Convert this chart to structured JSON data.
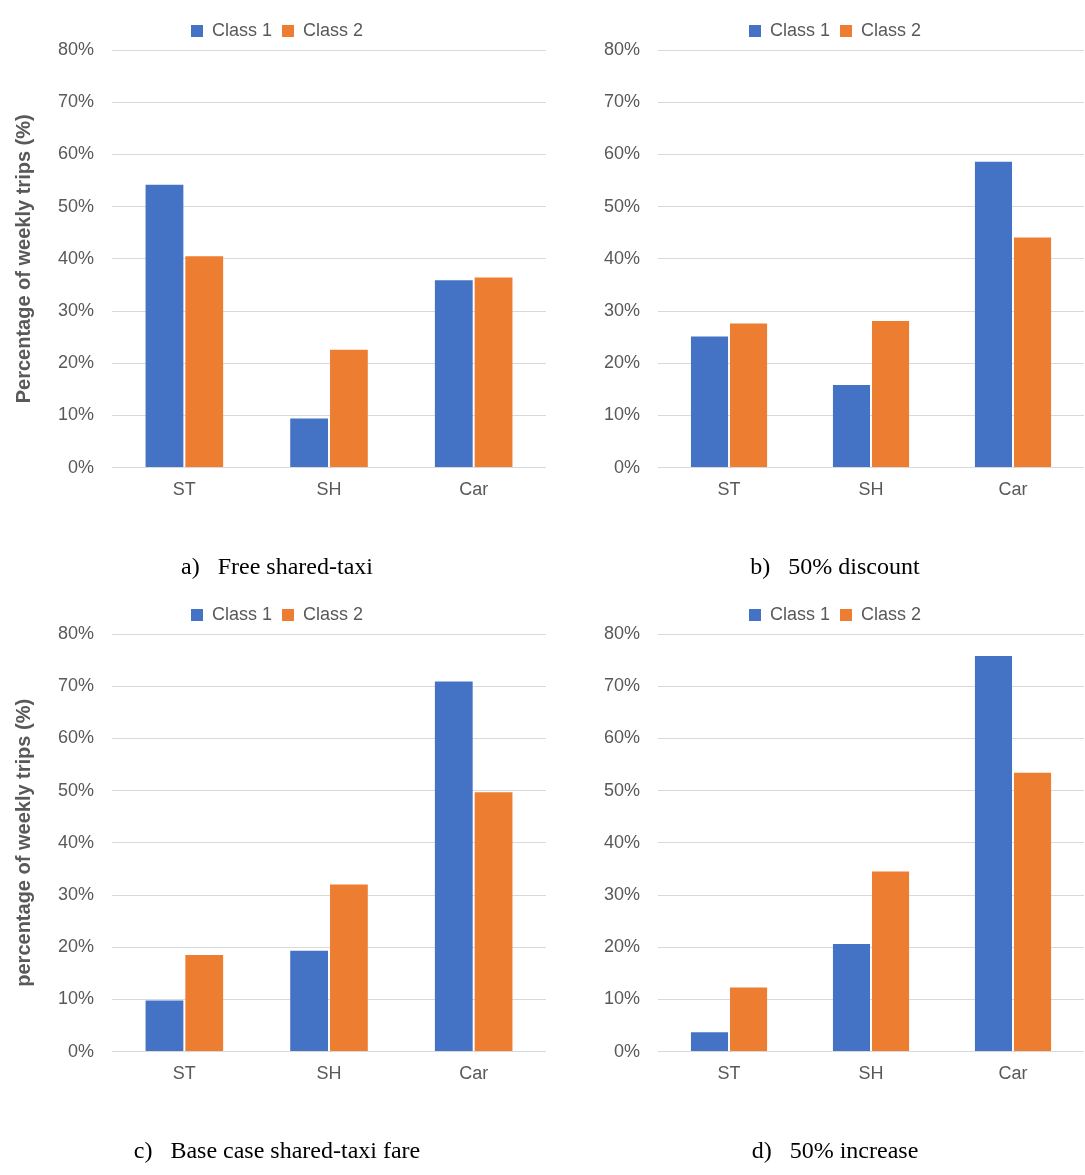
{
  "chart_data": [
    {
      "type": "bar",
      "title": "a)   Free shared-taxi",
      "ylabel": "Percentage of weekly trips (%)",
      "categories": [
        "ST",
        "SH",
        "Car"
      ],
      "series": [
        {
          "name": "Class 1",
          "color": "#4472c4",
          "values": [
            54.2,
            9.4,
            35.9
          ]
        },
        {
          "name": "Class 2",
          "color": "#ed7d31",
          "values": [
            40.5,
            22.6,
            36.4
          ]
        }
      ],
      "ylim": [
        0,
        80
      ],
      "yticks": [
        {
          "value": 0,
          "label": "0%"
        },
        {
          "value": 10,
          "label": "10%"
        },
        {
          "value": 20,
          "label": "20%"
        },
        {
          "value": 30,
          "label": "30%"
        },
        {
          "value": 40,
          "label": "40%"
        },
        {
          "value": 50,
          "label": "50%"
        },
        {
          "value": 60,
          "label": "60%"
        },
        {
          "value": 70,
          "label": "70%"
        },
        {
          "value": 80,
          "label": "80%"
        }
      ],
      "grid": "y",
      "legend": "top"
    },
    {
      "type": "bar",
      "title": "b)   50% discount",
      "categories": [
        "ST",
        "SH",
        "Car"
      ],
      "series": [
        {
          "name": "Class 1",
          "color": "#4472c4",
          "values": [
            25.1,
            15.8,
            58.6
          ]
        },
        {
          "name": "Class 2",
          "color": "#ed7d31",
          "values": [
            27.6,
            28.1,
            44.1
          ]
        }
      ],
      "ylim": [
        0,
        80
      ],
      "yticks": [
        {
          "value": 0,
          "label": "0%"
        },
        {
          "value": 10,
          "label": "10%"
        },
        {
          "value": 20,
          "label": "20%"
        },
        {
          "value": 30,
          "label": "30%"
        },
        {
          "value": 40,
          "label": "40%"
        },
        {
          "value": 50,
          "label": "50%"
        },
        {
          "value": 60,
          "label": "60%"
        },
        {
          "value": 70,
          "label": "70%"
        },
        {
          "value": 80,
          "label": "80%"
        }
      ],
      "grid": "y",
      "legend": "top"
    },
    {
      "type": "bar",
      "title": "c)   Base case shared-taxi fare",
      "ylabel": "percentage of weekly trips (%)",
      "categories": [
        "ST",
        "SH",
        "Car"
      ],
      "series": [
        {
          "name": "Class 1",
          "color": "#4472c4",
          "values": [
            9.8,
            19.3,
            70.9
          ]
        },
        {
          "name": "Class 2",
          "color": "#ed7d31",
          "values": [
            18.5,
            32.0,
            49.7
          ]
        }
      ],
      "ylim": [
        0,
        80
      ],
      "yticks": [
        {
          "value": 0,
          "label": "0%"
        },
        {
          "value": 10,
          "label": "10%"
        },
        {
          "value": 20,
          "label": "20%"
        },
        {
          "value": 30,
          "label": "30%"
        },
        {
          "value": 40,
          "label": "40%"
        },
        {
          "value": 50,
          "label": "50%"
        },
        {
          "value": 60,
          "label": "60%"
        },
        {
          "value": 70,
          "label": "70%"
        },
        {
          "value": 80,
          "label": "80%"
        }
      ],
      "grid": "y",
      "legend": "top"
    },
    {
      "type": "bar",
      "title": "d)   50% increase",
      "categories": [
        "ST",
        "SH",
        "Car"
      ],
      "series": [
        {
          "name": "Class 1",
          "color": "#4472c4",
          "values": [
            3.7,
            20.6,
            75.8
          ]
        },
        {
          "name": "Class 2",
          "color": "#ed7d31",
          "values": [
            12.3,
            34.5,
            53.4
          ]
        }
      ],
      "ylim": [
        0,
        80
      ],
      "yticks": [
        {
          "value": 0,
          "label": "0%"
        },
        {
          "value": 10,
          "label": "10%"
        },
        {
          "value": 20,
          "label": "20%"
        },
        {
          "value": 30,
          "label": "30%"
        },
        {
          "value": 40,
          "label": "40%"
        },
        {
          "value": 50,
          "label": "50%"
        },
        {
          "value": 60,
          "label": "60%"
        },
        {
          "value": 70,
          "label": "70%"
        },
        {
          "value": 80,
          "label": "80%"
        }
      ],
      "grid": "y",
      "legend": "top"
    }
  ]
}
